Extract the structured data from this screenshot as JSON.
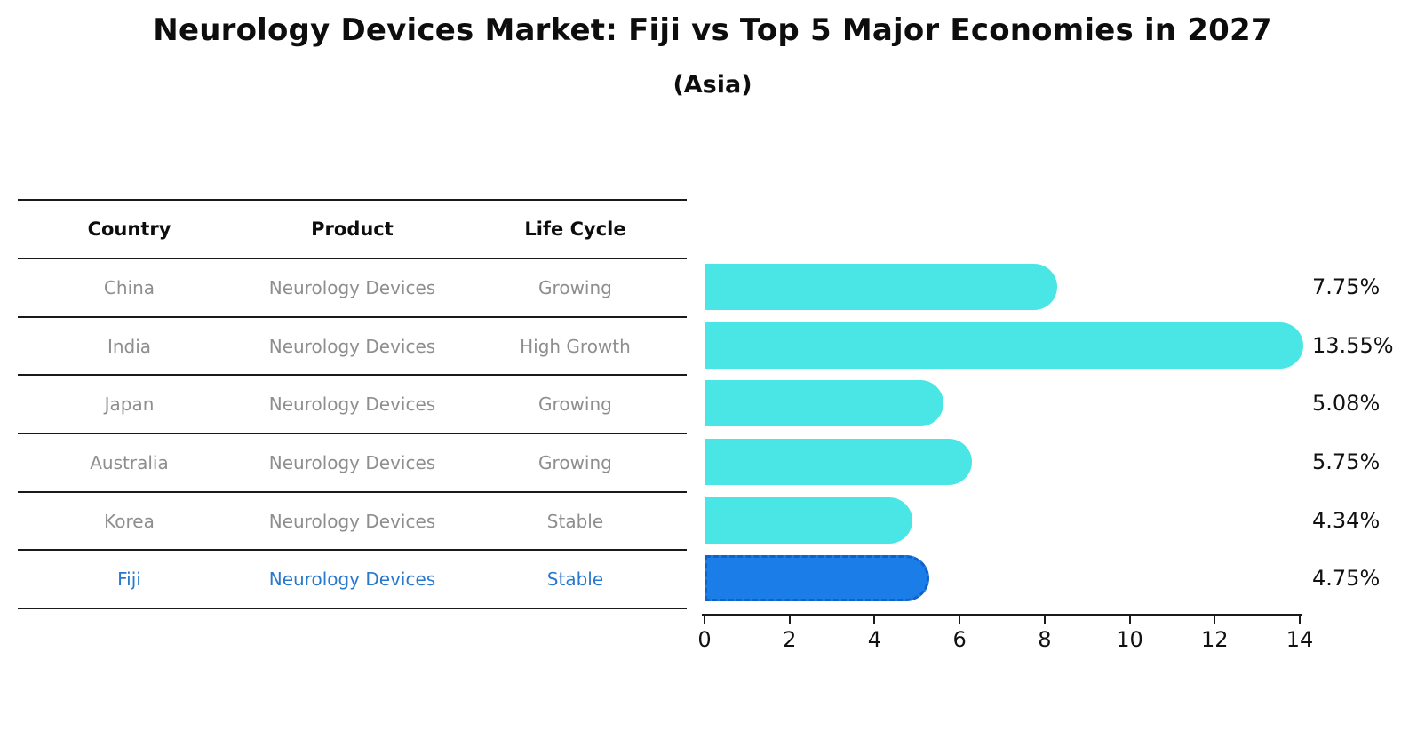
{
  "figure": {
    "title": "Neurology Devices Market: Fiji vs Top 5 Major Economies in 2027",
    "subtitle": "(Asia)"
  },
  "table": {
    "headers": [
      "Country",
      "Product",
      "Life Cycle"
    ],
    "rows": [
      {
        "country": "China",
        "product": "Neurology Devices",
        "life_cycle": "Growing",
        "highlight": false
      },
      {
        "country": "India",
        "product": "Neurology Devices",
        "life_cycle": "High Growth",
        "highlight": false
      },
      {
        "country": "Japan",
        "product": "Neurology Devices",
        "life_cycle": "Growing",
        "highlight": false
      },
      {
        "country": "Australia",
        "product": "Neurology Devices",
        "life_cycle": "Growing",
        "highlight": false
      },
      {
        "country": "Korea",
        "product": "Neurology Devices",
        "life_cycle": "Stable",
        "highlight": false
      },
      {
        "country": "Fiji",
        "product": "Neurology Devices",
        "life_cycle": "Stable",
        "highlight": true
      }
    ]
  },
  "chart_data": {
    "type": "bar",
    "orientation": "horizontal",
    "title": "Neurology Devices Market: Fiji vs Top 5 Major Economies in 2027 (Asia)",
    "categories": [
      "China",
      "India",
      "Japan",
      "Australia",
      "Korea",
      "Fiji"
    ],
    "values": [
      7.75,
      13.55,
      5.08,
      5.75,
      4.34,
      4.75
    ],
    "value_labels": [
      "7.75%",
      "13.55%",
      "5.08%",
      "5.75%",
      "4.34%",
      "4.75%"
    ],
    "unit": "percent growth",
    "xlabel": "",
    "ylabel": "",
    "xlim": [
      0,
      14
    ],
    "xticks": [
      "0",
      "2",
      "4",
      "6",
      "8",
      "10",
      "12",
      "14"
    ],
    "grid": false,
    "legend": "none",
    "bar_color": "#4ae6e6",
    "highlight_index": 5,
    "highlight_color": "#1b7ee8",
    "highlight_border_color": "#0f62c8",
    "highlight_text_color": "#2878cd"
  }
}
